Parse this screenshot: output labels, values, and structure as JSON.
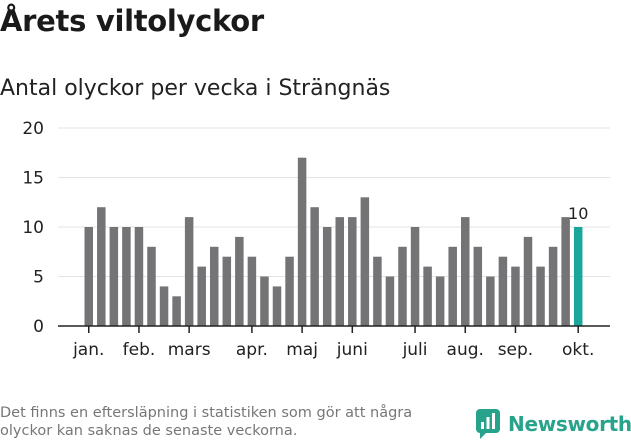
{
  "header": {
    "title": "Årets viltolyckor",
    "subtitle": "Antal olyckor per vecka i Strängnäs"
  },
  "footer": {
    "note": "Det finns en eftersläpning i statistiken som gör att några olyckor kan saknas de senaste veckorna.",
    "brand": "Newsworthy"
  },
  "colors": {
    "bar": "#747476",
    "highlight": "#1aa69a",
    "grid": "#e3e3e3",
    "axis": "#222222",
    "brand": "#27a38c"
  },
  "chart_data": {
    "type": "bar",
    "values": [
      10,
      12,
      10,
      10,
      10,
      8,
      4,
      3,
      11,
      6,
      8,
      7,
      9,
      7,
      5,
      4,
      7,
      17,
      12,
      10,
      11,
      11,
      13,
      7,
      5,
      8,
      10,
      6,
      5,
      8,
      11,
      8,
      5,
      7,
      6,
      9,
      6,
      8,
      11,
      10
    ],
    "highlight_index": 39,
    "highlight_label": "10",
    "ylim": [
      0,
      20
    ],
    "yticks": [
      0,
      5,
      10,
      15,
      20
    ],
    "month_labels": [
      {
        "label": "jan.",
        "bar_index": 0
      },
      {
        "label": "feb.",
        "bar_index": 4
      },
      {
        "label": "mars",
        "bar_index": 8
      },
      {
        "label": "apr.",
        "bar_index": 13
      },
      {
        "label": "maj",
        "bar_index": 17
      },
      {
        "label": "juni",
        "bar_index": 21
      },
      {
        "label": "juli",
        "bar_index": 26
      },
      {
        "label": "aug.",
        "bar_index": 30
      },
      {
        "label": "sep.",
        "bar_index": 34
      },
      {
        "label": "okt.",
        "bar_index": 39
      }
    ],
    "title": "Årets viltolyckor",
    "subtitle": "Antal olyckor per vecka i Strängnäs",
    "grid": true
  }
}
